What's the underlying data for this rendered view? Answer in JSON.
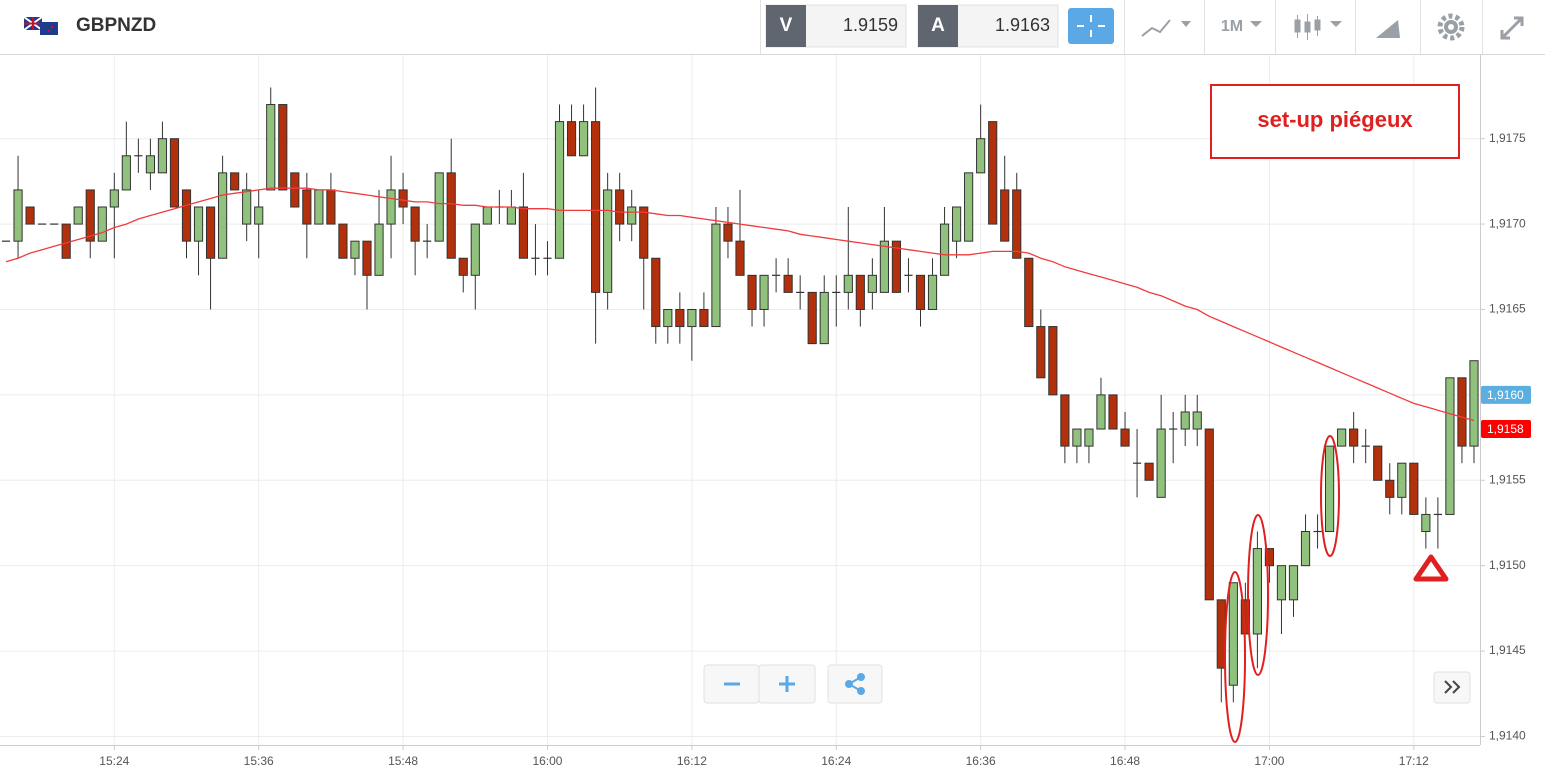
{
  "chart_data": {
    "type": "candlestick",
    "symbol": "GBPNZD",
    "sell": {
      "label": "V",
      "value": 1.9159
    },
    "buy": {
      "label": "A",
      "value": 1.9163
    },
    "timeframe": "1M",
    "annotation": "set-up piégeux",
    "up_color": "#90c27d",
    "down_color": "#b3300c",
    "grid": true,
    "categories": [
      null,
      null,
      null,
      null,
      null,
      null,
      null,
      null,
      null,
      "15:24",
      null,
      null,
      null,
      null,
      null,
      null,
      null,
      null,
      null,
      null,
      null,
      "15:36",
      null,
      null,
      null,
      null,
      null,
      null,
      null,
      null,
      null,
      null,
      null,
      "15:48",
      null,
      null,
      null,
      null,
      null,
      null,
      null,
      null,
      null,
      null,
      null,
      "16:00",
      null,
      null,
      null,
      null,
      null,
      null,
      null,
      null,
      null,
      null,
      null,
      "16:12",
      null,
      null,
      null,
      null,
      null,
      null,
      null,
      null,
      null,
      null,
      null,
      "16:24",
      null,
      null,
      null,
      null,
      null,
      null,
      null,
      null,
      null,
      null,
      null,
      "16:36",
      null,
      null,
      null,
      null,
      null,
      null,
      null,
      null,
      null,
      null,
      null,
      "16:48",
      null,
      null,
      null,
      null,
      null,
      null,
      null,
      null,
      null,
      null,
      null,
      "17:00",
      null,
      null,
      null,
      null,
      null,
      null,
      null,
      null,
      null,
      null,
      null,
      "17:12",
      null,
      null,
      null,
      null,
      null
    ],
    "open": [
      1.9169,
      1.9169,
      1.9171,
      1.917,
      1.917,
      1.917,
      1.917,
      1.9172,
      1.9169,
      1.9171,
      1.9172,
      1.9174,
      1.9173,
      1.9173,
      1.9175,
      1.9172,
      1.9169,
      1.9171,
      1.9168,
      1.9173,
      1.917,
      1.917,
      1.9172,
      1.9177,
      1.9173,
      1.9172,
      1.917,
      1.9172,
      1.917,
      1.9168,
      1.9169,
      1.9167,
      1.917,
      1.9172,
      1.9171,
      1.9169,
      1.9169,
      1.9173,
      1.9168,
      1.9167,
      1.917,
      1.9171,
      1.917,
      1.9171,
      1.9168,
      1.9168,
      1.9168,
      1.9176,
      1.9174,
      1.9176,
      1.9166,
      1.9172,
      1.917,
      1.9171,
      1.9168,
      1.9164,
      1.9165,
      1.9164,
      1.9165,
      1.9164,
      1.917,
      1.9169,
      1.9167,
      1.9165,
      1.9167,
      1.9167,
      1.9166,
      1.9166,
      1.9163,
      1.9166,
      1.9166,
      1.9167,
      1.9166,
      1.9166,
      1.9169,
      1.9167,
      1.9167,
      1.9165,
      1.9167,
      1.9169,
      1.9169,
      1.9173,
      1.9176,
      1.9172,
      1.9172,
      1.9168,
      1.9164,
      1.9164,
      1.916,
      1.9157,
      1.9157,
      1.9158,
      1.916,
      1.9158,
      1.9156,
      1.9156,
      1.9154,
      1.9158,
      1.9158,
      1.9158,
      1.9158,
      1.9148,
      1.9143,
      1.9148,
      1.9146,
      1.9151,
      1.9148,
      1.9148,
      1.915,
      1.9152,
      1.9152,
      1.9157,
      1.9158,
      1.9157,
      1.9157,
      1.9155,
      1.9154,
      1.9156,
      1.9152,
      1.9153,
      1.9153,
      1.9161,
      1.9157
    ],
    "high": [
      1.9169,
      1.9174,
      1.9171,
      1.917,
      1.917,
      1.917,
      1.9171,
      1.9172,
      1.9171,
      1.9173,
      1.9176,
      1.9175,
      1.9175,
      1.9176,
      1.9175,
      1.9172,
      1.9171,
      1.9171,
      1.9174,
      1.9173,
      1.9173,
      1.9172,
      1.9178,
      1.9177,
      1.9173,
      1.9173,
      1.9172,
      1.9173,
      1.917,
      1.9169,
      1.9169,
      1.9172,
      1.9174,
      1.9173,
      1.9171,
      1.917,
      1.9173,
      1.9175,
      1.9168,
      1.917,
      1.9171,
      1.9172,
      1.9172,
      1.9173,
      1.917,
      1.9169,
      1.9177,
      1.9177,
      1.9177,
      1.9178,
      1.9173,
      1.9173,
      1.9172,
      1.9171,
      1.9168,
      1.9165,
      1.9166,
      1.9165,
      1.9166,
      1.9171,
      1.9171,
      1.9172,
      1.9167,
      1.9167,
      1.9168,
      1.9168,
      1.9167,
      1.9166,
      1.9167,
      1.9167,
      1.9171,
      1.9167,
      1.9168,
      1.9171,
      1.9169,
      1.9168,
      1.9167,
      1.9168,
      1.9171,
      1.9171,
      1.9173,
      1.9177,
      1.9176,
      1.9174,
      1.9173,
      1.9168,
      1.9165,
      1.9164,
      1.916,
      1.9158,
      1.9158,
      1.9161,
      1.916,
      1.9159,
      1.9158,
      1.9156,
      1.916,
      1.9159,
      1.916,
      1.916,
      1.9158,
      1.9148,
      1.9149,
      1.9149,
      1.9152,
      1.9151,
      1.915,
      1.915,
      1.9153,
      1.9153,
      1.9157,
      1.9158,
      1.9159,
      1.9158,
      1.9157,
      1.9156,
      1.9156,
      1.9156,
      1.9154,
      1.9154,
      1.9161,
      1.9161,
      1.9162
    ],
    "low": [
      1.9169,
      1.9168,
      1.917,
      1.917,
      1.917,
      1.9168,
      1.917,
      1.9168,
      1.9169,
      1.9168,
      1.9172,
      1.9173,
      1.9172,
      1.9173,
      1.9171,
      1.9168,
      1.9167,
      1.9165,
      1.9168,
      1.9172,
      1.9169,
      1.9168,
      1.9172,
      1.9172,
      1.9171,
      1.9168,
      1.917,
      1.917,
      1.9168,
      1.9167,
      1.9165,
      1.9167,
      1.9168,
      1.917,
      1.9167,
      1.9168,
      1.9169,
      1.9168,
      1.9166,
      1.9165,
      1.917,
      1.917,
      1.917,
      1.9168,
      1.9167,
      1.9167,
      1.9168,
      1.9174,
      1.9174,
      1.9163,
      1.9165,
      1.9169,
      1.9169,
      1.9165,
      1.9163,
      1.9163,
      1.9163,
      1.9162,
      1.9164,
      1.9164,
      1.9168,
      1.9167,
      1.9164,
      1.9164,
      1.9166,
      1.9166,
      1.9165,
      1.9163,
      1.9163,
      1.9164,
      1.9165,
      1.9164,
      1.9165,
      1.9166,
      1.9166,
      1.9166,
      1.9164,
      1.9165,
      1.9167,
      1.9168,
      1.9169,
      1.9173,
      1.917,
      1.9169,
      1.9168,
      1.9164,
      1.9161,
      1.916,
      1.9156,
      1.9156,
      1.9156,
      1.9158,
      1.9158,
      1.9157,
      1.9154,
      1.9155,
      1.9154,
      1.9156,
      1.9157,
      1.9157,
      1.9148,
      1.9142,
      1.9142,
      1.9146,
      1.9144,
      1.9149,
      1.9146,
      1.9147,
      1.915,
      1.9151,
      1.9152,
      1.9157,
      1.9156,
      1.9156,
      1.9155,
      1.9153,
      1.9153,
      1.9153,
      1.9151,
      1.9151,
      1.9153,
      1.9156,
      1.9156
    ],
    "close": [
      1.9169,
      1.9172,
      1.917,
      1.917,
      1.917,
      1.9168,
      1.9171,
      1.9169,
      1.9171,
      1.9172,
      1.9174,
      1.9174,
      1.9174,
      1.9175,
      1.9171,
      1.9169,
      1.9171,
      1.9168,
      1.9173,
      1.9172,
      1.9172,
      1.9171,
      1.9177,
      1.9172,
      1.9171,
      1.917,
      1.9172,
      1.917,
      1.9168,
      1.9169,
      1.9167,
      1.917,
      1.9172,
      1.9171,
      1.9169,
      1.9169,
      1.9173,
      1.9168,
      1.9167,
      1.917,
      1.9171,
      1.9171,
      1.9171,
      1.9168,
      1.9168,
      1.9168,
      1.9176,
      1.9174,
      1.9176,
      1.9166,
      1.9172,
      1.917,
      1.9171,
      1.9168,
      1.9164,
      1.9165,
      1.9164,
      1.9165,
      1.9164,
      1.917,
      1.9169,
      1.9167,
      1.9165,
      1.9167,
      1.9167,
      1.9166,
      1.9166,
      1.9163,
      1.9166,
      1.9166,
      1.9167,
      1.9165,
      1.9167,
      1.9169,
      1.9166,
      1.9167,
      1.9165,
      1.9167,
      1.917,
      1.9171,
      1.9173,
      1.9175,
      1.917,
      1.9169,
      1.9168,
      1.9164,
      1.9161,
      1.916,
      1.9157,
      1.9158,
      1.9158,
      1.916,
      1.9158,
      1.9157,
      1.9156,
      1.9155,
      1.9158,
      1.9158,
      1.9159,
      1.9159,
      1.9148,
      1.9144,
      1.9149,
      1.9146,
      1.9151,
      1.915,
      1.915,
      1.915,
      1.9152,
      1.9152,
      1.9157,
      1.9158,
      1.9157,
      1.9157,
      1.9155,
      1.9154,
      1.9156,
      1.9153,
      1.9153,
      1.9153,
      1.9161,
      1.9157,
      1.9162
    ],
    "ma": {
      "color": "#f03c3c",
      "values": [
        1.91678,
        1.9168,
        1.91683,
        1.91685,
        1.91687,
        1.91689,
        1.91691,
        1.91693,
        1.91695,
        1.91698,
        1.917,
        1.91703,
        1.91705,
        1.91707,
        1.91709,
        1.91711,
        1.91713,
        1.91715,
        1.91717,
        1.91718,
        1.91719,
        1.9172,
        1.91721,
        1.91721,
        1.91721,
        1.91721,
        1.9172,
        1.9172,
        1.91719,
        1.91718,
        1.91717,
        1.91716,
        1.91715,
        1.91714,
        1.91713,
        1.91713,
        1.91712,
        1.91712,
        1.91711,
        1.91711,
        1.9171,
        1.9171,
        1.9171,
        1.91709,
        1.91709,
        1.91709,
        1.91708,
        1.91708,
        1.91708,
        1.91708,
        1.91708,
        1.91707,
        1.91707,
        1.91707,
        1.91706,
        1.91705,
        1.91705,
        1.91704,
        1.91703,
        1.91702,
        1.91701,
        1.917,
        1.91699,
        1.91698,
        1.91697,
        1.91696,
        1.91694,
        1.91693,
        1.91692,
        1.91691,
        1.9169,
        1.91689,
        1.91688,
        1.91687,
        1.91686,
        1.91685,
        1.91684,
        1.91683,
        1.91682,
        1.91682,
        1.91682,
        1.91683,
        1.91684,
        1.91684,
        1.91684,
        1.91683,
        1.9168,
        1.91678,
        1.91675,
        1.91673,
        1.91671,
        1.91669,
        1.91667,
        1.91665,
        1.91663,
        1.9166,
        1.91658,
        1.91655,
        1.91652,
        1.9165,
        1.91646,
        1.91643,
        1.9164,
        1.91637,
        1.91634,
        1.91631,
        1.91628,
        1.91625,
        1.91622,
        1.91619,
        1.91616,
        1.91613,
        1.9161,
        1.91607,
        1.91604,
        1.91601,
        1.91598,
        1.91595,
        1.91593,
        1.91591,
        1.91589,
        1.91587,
        1.91585
      ]
    },
    "ylim": [
      1.91395,
      1.91799
    ],
    "yticks": [
      {
        "value": 1.914,
        "label": "1,9140"
      },
      {
        "value": 1.9145,
        "label": "1,9145"
      },
      {
        "value": 1.915,
        "label": "1,9150"
      },
      {
        "value": 1.9155,
        "label": "1,9155"
      },
      {
        "value": 1.916,
        "label": "1,9160"
      },
      {
        "value": 1.9165,
        "label": "1,9165"
      },
      {
        "value": 1.917,
        "label": "1,9170"
      },
      {
        "value": 1.9175,
        "label": "1,9175"
      }
    ],
    "price_labels": [
      {
        "value": 1.916,
        "label": "1,9160",
        "color": "#5aafe0"
      },
      {
        "value": 1.9158,
        "label": "1,9158",
        "color": "#ff0000"
      }
    ]
  }
}
